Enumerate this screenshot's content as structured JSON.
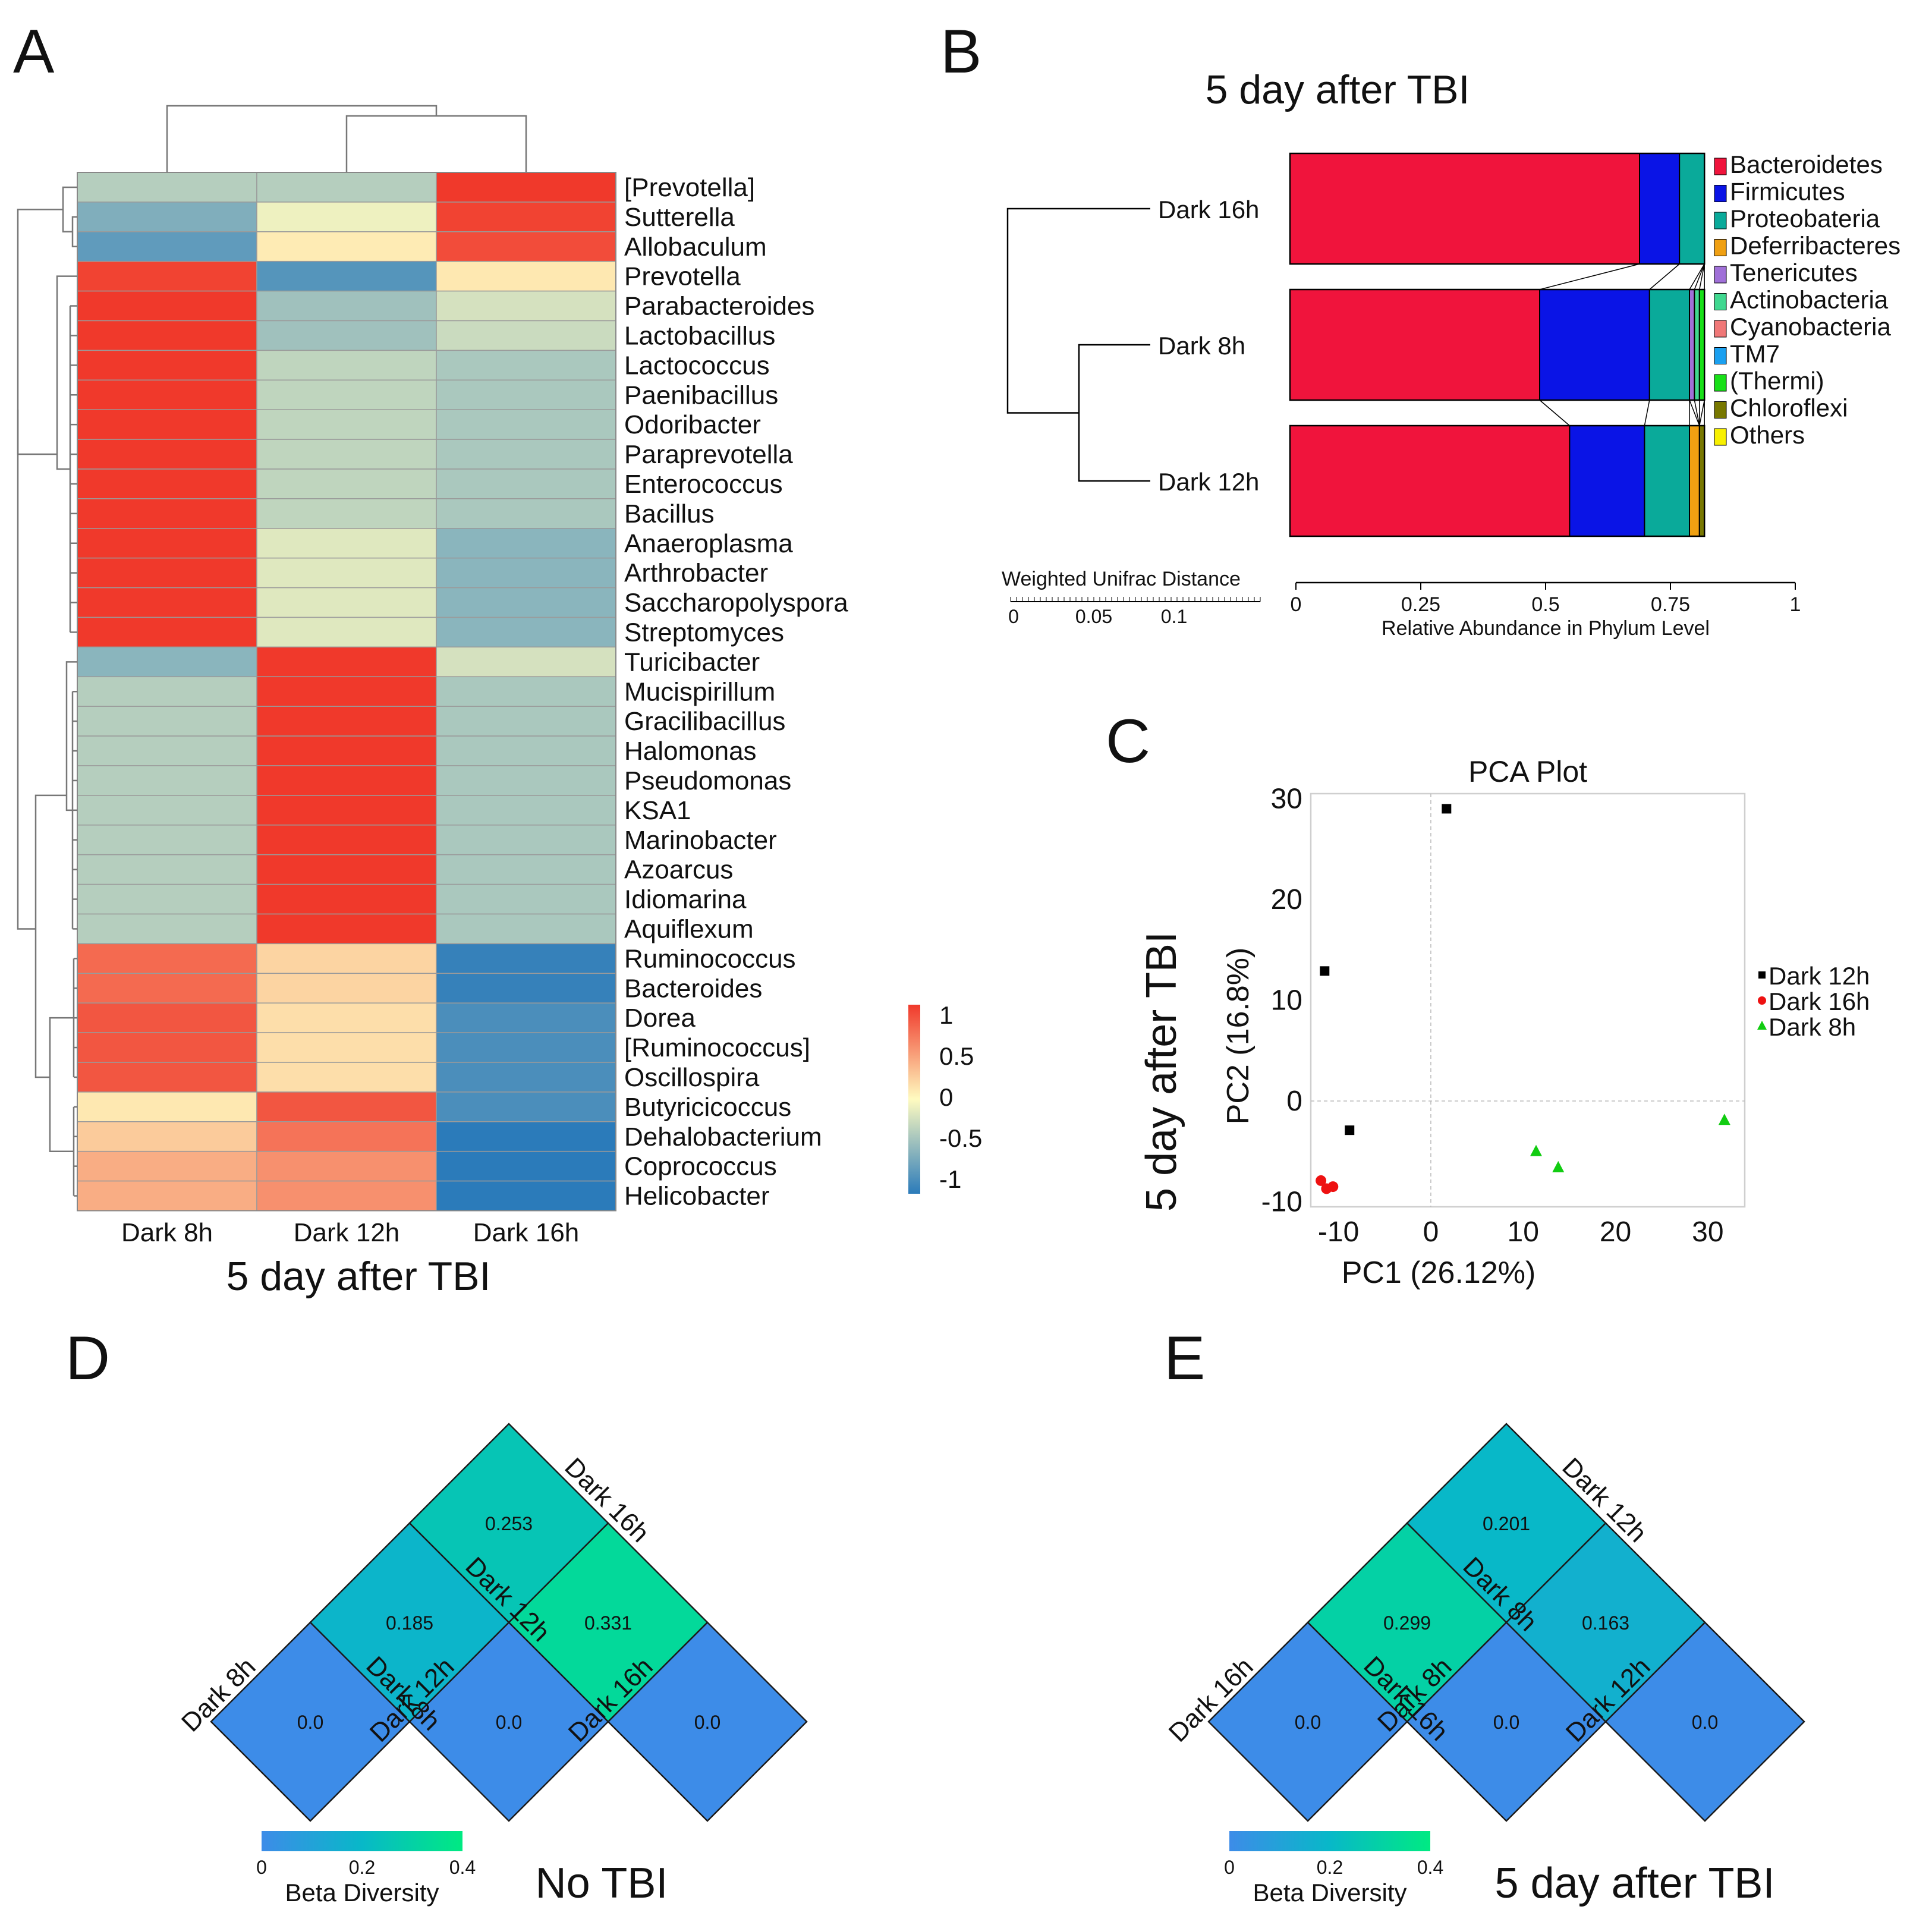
{
  "colors": {
    "heat_pos": "#f0392b",
    "heat_mid": "#fffbc0",
    "heat_neg": "#2b7bba",
    "beta_low": "#3d8ce8",
    "beta_mid": "#08b8c8",
    "beta_high": "#00ea82"
  },
  "panel_labels": {
    "a": "A",
    "b": "B",
    "c": "C",
    "d": "D",
    "e": "E"
  },
  "chart_data": [
    {
      "id": "A",
      "type": "heatmap",
      "xlabel": "5 day after TBI",
      "columns": [
        "Dark 8h",
        "Dark 12h",
        "Dark 16h"
      ],
      "rows": [
        "[Prevotella]",
        "Sutterella",
        "Allobaculum",
        "Prevotella",
        "Parabacteroides",
        "Lactobacillus",
        "Lactococcus",
        "Paenibacillus",
        "Odoribacter",
        "Paraprevotella",
        "Enterococcus",
        "Bacillus",
        "Anaeroplasma",
        "Arthrobacter",
        "Saccharopolyspora",
        "Streptomyces",
        "Turicibacter",
        "Mucispirillum",
        "Gracilibacillus",
        "Halomonas",
        "Pseudomonas",
        "KSA1",
        "Marinobacter",
        "Azoarcus",
        "Idiomarina",
        "Aquiflexum",
        "Ruminococcus",
        "Bacteroides",
        "Dorea",
        "[Ruminococcus]",
        "Oscillospira",
        "Butyricicoccus",
        "Dehalobacterium",
        "Coprococcus",
        "Helicobacter"
      ],
      "values": [
        [
          -0.35,
          -0.35,
          1.0
        ],
        [
          -0.6,
          -0.08,
          0.95
        ],
        [
          -0.75,
          0.08,
          0.9
        ],
        [
          0.95,
          -0.8,
          0.1
        ],
        [
          1.0,
          -0.45,
          -0.2
        ],
        [
          1.0,
          -0.45,
          -0.25
        ],
        [
          1.0,
          -0.3,
          -0.4
        ],
        [
          1.0,
          -0.3,
          -0.4
        ],
        [
          1.0,
          -0.3,
          -0.4
        ],
        [
          1.0,
          -0.3,
          -0.4
        ],
        [
          1.0,
          -0.3,
          -0.4
        ],
        [
          1.0,
          -0.3,
          -0.4
        ],
        [
          1.0,
          -0.15,
          -0.55
        ],
        [
          1.0,
          -0.15,
          -0.55
        ],
        [
          1.0,
          -0.15,
          -0.55
        ],
        [
          1.0,
          -0.15,
          -0.55
        ],
        [
          -0.55,
          1.0,
          -0.2
        ],
        [
          -0.35,
          1.0,
          -0.4
        ],
        [
          -0.35,
          1.0,
          -0.4
        ],
        [
          -0.35,
          1.0,
          -0.4
        ],
        [
          -0.35,
          1.0,
          -0.4
        ],
        [
          -0.35,
          1.0,
          -0.4
        ],
        [
          -0.35,
          1.0,
          -0.4
        ],
        [
          -0.35,
          1.0,
          -0.4
        ],
        [
          -0.35,
          1.0,
          -0.4
        ],
        [
          -0.35,
          1.0,
          -0.4
        ],
        [
          0.75,
          0.2,
          -0.95
        ],
        [
          0.75,
          0.2,
          -0.95
        ],
        [
          0.85,
          0.15,
          -0.85
        ],
        [
          0.85,
          0.15,
          -0.85
        ],
        [
          0.85,
          0.15,
          -0.85
        ],
        [
          0.1,
          0.85,
          -0.85
        ],
        [
          0.25,
          0.7,
          -1.0
        ],
        [
          0.4,
          0.55,
          -1.0
        ],
        [
          0.4,
          0.55,
          -1.0
        ]
      ],
      "legend_ticks": [
        "1",
        "0.5",
        "0",
        "-0.5",
        "-1"
      ],
      "vmin": -1,
      "vmax": 1
    },
    {
      "id": "B",
      "type": "bar",
      "orientation": "horizontal-stacked",
      "title": "5 day after TBI",
      "xlabel": "Relative Abundance in Phylum Level",
      "xlim": [
        0,
        1
      ],
      "xticks": [
        "0",
        "0.25",
        "0.5",
        "0.75",
        "1"
      ],
      "categories": [
        "Dark 16h",
        "Dark 8h",
        "Dark 12h"
      ],
      "series": [
        {
          "name": "Bacteroidetes",
          "color": "#f0143c",
          "values": [
            0.7,
            0.5,
            0.56
          ]
        },
        {
          "name": "Firmicutes",
          "color": "#0a14e6",
          "values": [
            0.08,
            0.22,
            0.15
          ]
        },
        {
          "name": "Proteobateria",
          "color": "#0aaa9a",
          "values": [
            0.05,
            0.08,
            0.09
          ]
        },
        {
          "name": "Deferribacteres",
          "color": "#f0a012",
          "values": [
            0.0,
            0.0,
            0.02
          ]
        },
        {
          "name": "Tenericutes",
          "color": "#a070d8",
          "values": [
            0.0,
            0.01,
            0.0
          ]
        },
        {
          "name": "Actinobacteria",
          "color": "#40d890",
          "values": [
            0.0,
            0.01,
            0.0
          ]
        },
        {
          "name": "Cyanobacteria",
          "color": "#f07878",
          "values": [
            0.0,
            0.0,
            0.0
          ]
        },
        {
          "name": "TM7",
          "color": "#1aa0f0",
          "values": [
            0.0,
            0.0,
            0.0
          ]
        },
        {
          "name": "(Thermi)",
          "color": "#18e018",
          "values": [
            0.0,
            0.01,
            0.0
          ]
        },
        {
          "name": "Chloroflexi",
          "color": "#787800",
          "values": [
            0.0,
            0.0,
            0.01
          ]
        },
        {
          "name": "Others",
          "color": "#f8f000",
          "values": [
            0.0,
            0.0,
            0.0
          ]
        }
      ],
      "dendrogram_label": "Weighted Unifrac Distance",
      "dendrogram_ticks": [
        "0",
        "0.05",
        "0.1"
      ]
    },
    {
      "id": "C",
      "type": "scatter",
      "title": "PCA Plot",
      "side_label": "5 day after TBI",
      "xlabel": "PC1 (26.12%)",
      "ylabel": "PC2 (16.8%)",
      "xlim": [
        -13,
        34
      ],
      "ylim": [
        -10.5,
        30.5
      ],
      "xticks": [
        -10,
        0,
        10,
        20,
        30
      ],
      "yticks": [
        -10,
        0,
        10,
        20,
        30
      ],
      "xtick_labels": [
        "-10",
        "0",
        "10",
        "20",
        "30"
      ],
      "ytick_labels": [
        "-10",
        "0",
        "10",
        "20",
        "30"
      ],
      "series": [
        {
          "name": "Dark 12h",
          "marker": "square",
          "color": "#000000",
          "points": [
            [
              1.7,
              29
            ],
            [
              -11.5,
              12.9
            ],
            [
              -8.8,
              -2.9
            ]
          ]
        },
        {
          "name": "Dark 16h",
          "marker": "circle",
          "color": "#ee1111",
          "points": [
            [
              -11.9,
              -7.9
            ],
            [
              -11.3,
              -8.7
            ],
            [
              -10.6,
              -8.5
            ]
          ]
        },
        {
          "name": "Dark 8h",
          "marker": "triangle",
          "color": "#11cc11",
          "points": [
            [
              11.4,
              -5.0
            ],
            [
              13.8,
              -6.6
            ],
            [
              31.8,
              -1.9
            ]
          ]
        }
      ]
    },
    {
      "id": "D",
      "type": "heatmap",
      "title": "No TBI",
      "legend_title": "Beta Diversity",
      "legend_ticks": [
        "0",
        "0.2",
        "0.4"
      ],
      "labels_left": [
        "Dark 8h",
        "Dark 12h",
        "Dark 16h"
      ],
      "labels_right": [
        "Dark 8h",
        "Dark 12h",
        "Dark 16h"
      ],
      "cells": [
        {
          "i": 0,
          "j": 0,
          "value": 0.0,
          "label": "0.0"
        },
        {
          "i": 1,
          "j": 1,
          "value": 0.0,
          "label": "0.0"
        },
        {
          "i": 2,
          "j": 2,
          "value": 0.0,
          "label": "0.0"
        },
        {
          "i": 0,
          "j": 1,
          "value": 0.185,
          "label": "0.185"
        },
        {
          "i": 1,
          "j": 2,
          "value": 0.331,
          "label": "0.331"
        },
        {
          "i": 0,
          "j": 2,
          "value": 0.253,
          "label": "0.253"
        }
      ]
    },
    {
      "id": "E",
      "type": "heatmap",
      "title": "5 day after TBI",
      "legend_title": "Beta Diversity",
      "legend_ticks": [
        "0",
        "0.2",
        "0.4"
      ],
      "labels_left": [
        "Dark 16h",
        "Dark 8h",
        "Dark 12h"
      ],
      "labels_right": [
        "Dark 16h",
        "Dark 8h",
        "Dark 12h"
      ],
      "cells": [
        {
          "i": 0,
          "j": 0,
          "value": 0.0,
          "label": "0.0"
        },
        {
          "i": 1,
          "j": 1,
          "value": 0.0,
          "label": "0.0"
        },
        {
          "i": 2,
          "j": 2,
          "value": 0.0,
          "label": "0.0"
        },
        {
          "i": 0,
          "j": 1,
          "value": 0.299,
          "label": "0.299"
        },
        {
          "i": 1,
          "j": 2,
          "value": 0.163,
          "label": "0.163"
        },
        {
          "i": 0,
          "j": 2,
          "value": 0.201,
          "label": "0.201"
        }
      ]
    }
  ]
}
